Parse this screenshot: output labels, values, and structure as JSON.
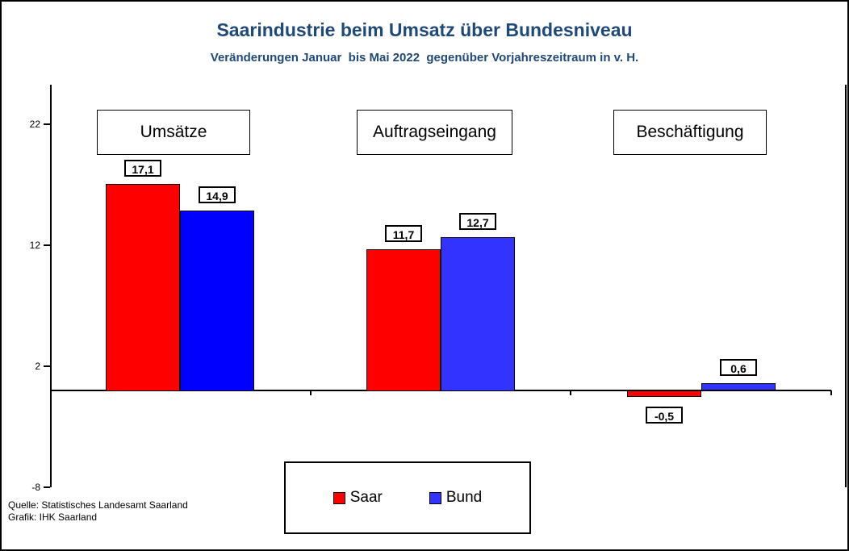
{
  "title": "Saarindustrie beim Umsatz über Bundesniveau",
  "subtitle": "Veränderungen Januar  bis Mai 2022  gegenüber Vorjahreszeitraum in v. H.",
  "title_color": "#1f4979",
  "source": {
    "line1": "Quelle: Statistisches Landesamt Saarland",
    "line2": "Grafik: IHK Saarland"
  },
  "legend": {
    "items": [
      {
        "label": "Saar",
        "color": "#ff0000"
      },
      {
        "label": "Bund",
        "color": "#3333ff"
      }
    ]
  },
  "chart_data": {
    "type": "bar",
    "categories": [
      "Umsätze",
      "Auftragseingang",
      "Beschäftigung"
    ],
    "series": [
      {
        "name": "Saar",
        "color": "#ff0000",
        "bar_colors": [
          "#ff0000",
          "#ff0000",
          "#ff0000"
        ],
        "values": [
          17.1,
          11.7,
          -0.5
        ],
        "labels": [
          "17,1",
          "11,7",
          "-0,5"
        ]
      },
      {
        "name": "Bund",
        "color": "#3333ff",
        "bar_colors": [
          "#0000ff",
          "#3333ff",
          "#3333ff"
        ],
        "values": [
          14.9,
          12.7,
          0.6
        ],
        "labels": [
          "14,9",
          "12,7",
          "0,6"
        ]
      }
    ],
    "ylim": [
      -8,
      25
    ],
    "yticks": [
      22,
      12,
      2,
      -8
    ],
    "grid": false,
    "legend_position": "bottom-center"
  }
}
